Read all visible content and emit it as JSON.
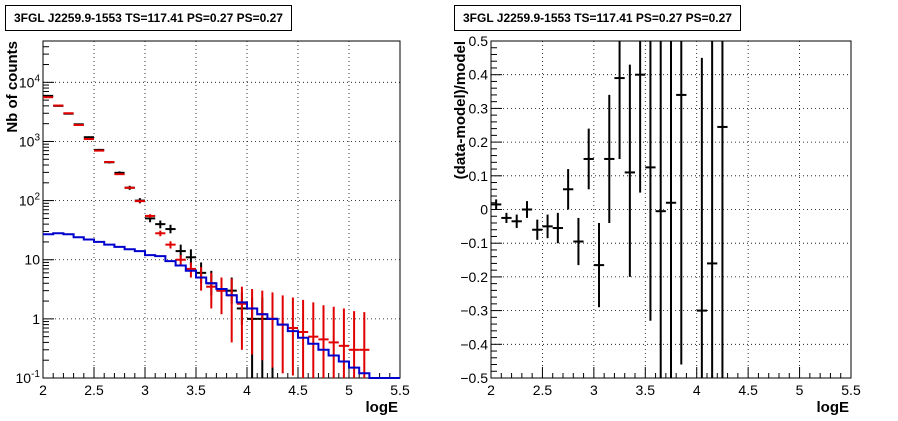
{
  "chart_data": [
    {
      "type": "scatter",
      "title": "3FGL J2259.9-1553 TS=117.41 PS=0.27 PS=0.27",
      "xlabel": "logE",
      "ylabel": "Nb of counts",
      "xlim": [
        2,
        5.5
      ],
      "ylim": [
        0.1,
        50000
      ],
      "yscale": "log",
      "grid": true,
      "x_ticks": [
        "2",
        "2.5",
        "3",
        "3.5",
        "4",
        "4.5",
        "5",
        "5.5"
      ],
      "y_ticks": [
        "10^-1",
        "1",
        "10",
        "10^2",
        "10^3",
        "10^4"
      ],
      "bin_width": 0.1,
      "series": [
        {
          "color": "#000000",
          "style": "errorbar",
          "points": [
            {
              "x": 2.05,
              "y": 5900,
              "lo": 5800,
              "hi": 6000
            },
            {
              "x": 2.15,
              "y": 4000,
              "lo": 3900,
              "hi": 4100
            },
            {
              "x": 2.25,
              "y": 2950,
              "lo": 2880,
              "hi": 3020
            },
            {
              "x": 2.35,
              "y": 1950,
              "lo": 1900,
              "hi": 2000
            },
            {
              "x": 2.45,
              "y": 1180,
              "lo": 1140,
              "hi": 1220
            },
            {
              "x": 2.55,
              "y": 720,
              "lo": 690,
              "hi": 750
            },
            {
              "x": 2.65,
              "y": 445,
              "lo": 425,
              "hi": 465
            },
            {
              "x": 2.75,
              "y": 295,
              "lo": 278,
              "hi": 312
            },
            {
              "x": 2.85,
              "y": 165,
              "lo": 152,
              "hi": 178
            },
            {
              "x": 2.95,
              "y": 100,
              "lo": 90,
              "hi": 110
            },
            {
              "x": 3.05,
              "y": 50,
              "lo": 43,
              "hi": 57
            },
            {
              "x": 3.15,
              "y": 40,
              "lo": 34,
              "hi": 46
            },
            {
              "x": 3.25,
              "y": 33,
              "lo": 28,
              "hi": 39
            },
            {
              "x": 3.35,
              "y": 14,
              "lo": 11,
              "hi": 18
            },
            {
              "x": 3.45,
              "y": 11,
              "lo": 8,
              "hi": 15
            },
            {
              "x": 3.55,
              "y": 6,
              "lo": 4,
              "hi": 9
            },
            {
              "x": 3.65,
              "y": 4,
              "lo": 2.5,
              "hi": 6.5
            },
            {
              "x": 3.75,
              "y": 3,
              "lo": 1.8,
              "hi": 5
            },
            {
              "x": 3.85,
              "y": 3,
              "lo": 1.8,
              "hi": 5
            },
            {
              "x": 3.95,
              "y": 1.5,
              "lo": 0.8,
              "hi": 2.8
            },
            {
              "x": 4.05,
              "y": 1,
              "lo": 0.1,
              "hi": 2.3
            },
            {
              "x": 4.15,
              "y": 1,
              "lo": 0.1,
              "hi": 2.3
            },
            {
              "x": 4.25,
              "y": 1,
              "lo": 0.1,
              "hi": 2.2
            }
          ]
        },
        {
          "color": "#e00000",
          "style": "errorbar",
          "points": [
            {
              "x": 2.05,
              "y": 5600,
              "lo": 5550,
              "hi": 5650
            },
            {
              "x": 2.15,
              "y": 4050,
              "lo": 4000,
              "hi": 4100
            },
            {
              "x": 2.25,
              "y": 3000,
              "lo": 2960,
              "hi": 3040
            },
            {
              "x": 2.35,
              "y": 1900,
              "lo": 1870,
              "hi": 1930
            },
            {
              "x": 2.45,
              "y": 1100,
              "lo": 1080,
              "hi": 1120
            },
            {
              "x": 2.55,
              "y": 700,
              "lo": 685,
              "hi": 715
            },
            {
              "x": 2.65,
              "y": 450,
              "lo": 440,
              "hi": 460
            },
            {
              "x": 2.75,
              "y": 280,
              "lo": 272,
              "hi": 288
            },
            {
              "x": 2.85,
              "y": 165,
              "lo": 158,
              "hi": 172
            },
            {
              "x": 2.95,
              "y": 98,
              "lo": 93,
              "hi": 103
            },
            {
              "x": 3.05,
              "y": 55,
              "lo": 51,
              "hi": 59
            },
            {
              "x": 3.15,
              "y": 28,
              "lo": 25,
              "hi": 31
            },
            {
              "x": 3.25,
              "y": 18,
              "lo": 15.5,
              "hi": 20.5
            },
            {
              "x": 3.35,
              "y": 10,
              "lo": 8,
              "hi": 12
            },
            {
              "x": 3.45,
              "y": 7,
              "lo": 5,
              "hi": 9
            },
            {
              "x": 3.55,
              "y": 5,
              "lo": 3,
              "hi": 7.5
            },
            {
              "x": 3.65,
              "y": 3.5,
              "lo": 1.5,
              "hi": 6
            },
            {
              "x": 3.75,
              "y": 3,
              "lo": 1.2,
              "hi": 5
            },
            {
              "x": 3.85,
              "y": 2.5,
              "lo": 0.4,
              "hi": 4.8
            },
            {
              "x": 3.95,
              "y": 1.8,
              "lo": 0.3,
              "hi": 3.5
            },
            {
              "x": 4.05,
              "y": 1.5,
              "lo": 0.25,
              "hi": 3.2
            },
            {
              "x": 4.15,
              "y": 1.2,
              "lo": 0.2,
              "hi": 3.0
            },
            {
              "x": 4.25,
              "y": 1.0,
              "lo": 0.15,
              "hi": 2.8
            },
            {
              "x": 4.35,
              "y": 0.8,
              "lo": 0.12,
              "hi": 2.5
            },
            {
              "x": 4.45,
              "y": 0.7,
              "lo": 0.11,
              "hi": 2.3
            },
            {
              "x": 4.55,
              "y": 0.6,
              "lo": 0.1,
              "hi": 2.1
            },
            {
              "x": 4.65,
              "y": 0.5,
              "lo": 0.1,
              "hi": 1.9
            },
            {
              "x": 4.75,
              "y": 0.45,
              "lo": 0.1,
              "hi": 1.7
            },
            {
              "x": 4.85,
              "y": 0.4,
              "lo": 0.1,
              "hi": 1.6
            },
            {
              "x": 4.95,
              "y": 0.35,
              "lo": 0.1,
              "hi": 1.5
            },
            {
              "x": 5.05,
              "y": 0.3,
              "lo": 0.1,
              "hi": 1.35
            },
            {
              "x": 5.15,
              "y": 0.3,
              "lo": 0.1,
              "hi": 1.3
            }
          ]
        },
        {
          "color": "#0000cc",
          "style": "step",
          "edges": [
            2.0,
            2.1,
            2.2,
            2.3,
            2.4,
            2.5,
            2.6,
            2.7,
            2.8,
            2.9,
            3.0,
            3.1,
            3.2,
            3.3,
            3.4,
            3.5,
            3.6,
            3.7,
            3.8,
            3.9,
            4.0,
            4.1,
            4.2,
            4.3,
            4.4,
            4.5,
            4.6,
            4.7,
            4.8,
            4.9,
            5.0,
            5.1,
            5.2,
            5.3,
            5.4,
            5.5
          ],
          "values": [
            27,
            28,
            27,
            24,
            22,
            20,
            18,
            16.5,
            15,
            14,
            12,
            11.5,
            9.5,
            8,
            6.5,
            5,
            4,
            3.2,
            2.5,
            1.9,
            1.5,
            1.2,
            1.0,
            0.8,
            0.62,
            0.48,
            0.38,
            0.3,
            0.24,
            0.19,
            0.15,
            0.12,
            0.1,
            0.1,
            0.1
          ]
        }
      ]
    },
    {
      "type": "scatter",
      "title": "3FGL J2259.9-1553 TS=117.41 PS=0.27 PS=0.27",
      "xlabel": "logE",
      "ylabel": "(data-model)/model",
      "xlim": [
        2,
        5.5
      ],
      "ylim": [
        -0.5,
        0.5
      ],
      "grid": true,
      "x_ticks": [
        "2",
        "2.5",
        "3",
        "3.5",
        "4",
        "4.5",
        "5",
        "5.5"
      ],
      "y_ticks": [
        "−0.5",
        "−0.4",
        "−0.3",
        "−0.2",
        "−0.1",
        "0",
        "0.1",
        "0.2",
        "0.3",
        "0.4",
        "0.5"
      ],
      "bin_width": 0.1,
      "series": [
        {
          "color": "#000000",
          "style": "errorbar",
          "points": [
            {
              "x": 2.05,
              "y": 0.015,
              "lo": 0.0,
              "hi": 0.03
            },
            {
              "x": 2.15,
              "y": -0.025,
              "lo": -0.04,
              "hi": -0.01
            },
            {
              "x": 2.25,
              "y": -0.035,
              "lo": -0.055,
              "hi": -0.015
            },
            {
              "x": 2.35,
              "y": 0.0,
              "lo": -0.025,
              "hi": 0.025
            },
            {
              "x": 2.45,
              "y": -0.06,
              "lo": -0.09,
              "hi": -0.03
            },
            {
              "x": 2.55,
              "y": -0.05,
              "lo": -0.085,
              "hi": -0.015
            },
            {
              "x": 2.65,
              "y": -0.055,
              "lo": -0.1,
              "hi": -0.01
            },
            {
              "x": 2.75,
              "y": 0.06,
              "lo": 0.0,
              "hi": 0.12
            },
            {
              "x": 2.85,
              "y": -0.095,
              "lo": -0.165,
              "hi": -0.025
            },
            {
              "x": 2.95,
              "y": 0.15,
              "lo": 0.06,
              "hi": 0.24
            },
            {
              "x": 3.05,
              "y": -0.165,
              "lo": -0.29,
              "hi": -0.04
            },
            {
              "x": 3.15,
              "y": 0.15,
              "lo": -0.04,
              "hi": 0.34
            },
            {
              "x": 3.25,
              "y": 0.39,
              "lo": 0.15,
              "hi": 0.5
            },
            {
              "x": 3.35,
              "y": 0.11,
              "lo": -0.2,
              "hi": 0.43
            },
            {
              "x": 3.45,
              "y": 0.4,
              "lo": 0.05,
              "hi": 0.5
            },
            {
              "x": 3.55,
              "y": 0.125,
              "lo": -0.33,
              "hi": 0.5
            },
            {
              "x": 3.65,
              "y": -0.005,
              "lo": -0.5,
              "hi": 0.5
            },
            {
              "x": 3.75,
              "y": 0.02,
              "lo": -0.5,
              "hi": 0.5
            },
            {
              "x": 3.85,
              "y": 0.34,
              "lo": -0.46,
              "hi": 0.5
            },
            {
              "x": 4.05,
              "y": -0.3,
              "lo": -0.5,
              "hi": 0.45
            },
            {
              "x": 4.15,
              "y": -0.16,
              "lo": -0.5,
              "hi": 0.5
            },
            {
              "x": 4.25,
              "y": 0.245,
              "lo": -0.5,
              "hi": 0.5
            }
          ]
        }
      ]
    }
  ]
}
